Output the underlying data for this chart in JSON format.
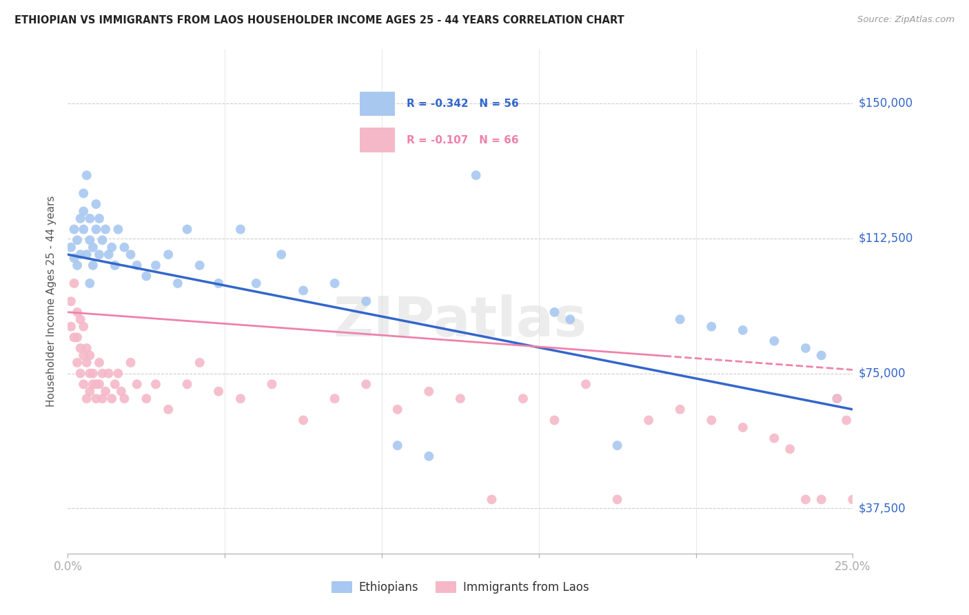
{
  "title": "ETHIOPIAN VS IMMIGRANTS FROM LAOS HOUSEHOLDER INCOME AGES 25 - 44 YEARS CORRELATION CHART",
  "source": "Source: ZipAtlas.com",
  "ylabel": "Householder Income Ages 25 - 44 years",
  "xlim": [
    0.0,
    0.25
  ],
  "ylim": [
    25000,
    165000
  ],
  "xticks": [
    0.0,
    0.05,
    0.1,
    0.15,
    0.2,
    0.25
  ],
  "xticklabels": [
    "0.0%",
    "",
    "",
    "",
    "",
    "25.0%"
  ],
  "ytick_positions": [
    37500,
    75000,
    112500,
    150000
  ],
  "ytick_labels": [
    "$37,500",
    "$75,000",
    "$112,500",
    "$150,000"
  ],
  "blue_color": "#A8C8F0",
  "pink_color": "#F5B8C8",
  "blue_line_color": "#3366CC",
  "pink_line_color": "#EE82AA",
  "legend_R1": "R = -0.342",
  "legend_N1": "N = 56",
  "legend_R2": "R = -0.107",
  "legend_N2": "N = 66",
  "watermark": "ZIPatlas",
  "title_color": "#222222",
  "axis_label_color": "#3366CC",
  "blue_scatter_x": [
    0.001,
    0.002,
    0.002,
    0.003,
    0.003,
    0.004,
    0.004,
    0.005,
    0.005,
    0.005,
    0.006,
    0.006,
    0.007,
    0.007,
    0.007,
    0.008,
    0.008,
    0.009,
    0.009,
    0.01,
    0.01,
    0.011,
    0.012,
    0.013,
    0.014,
    0.015,
    0.016,
    0.018,
    0.02,
    0.022,
    0.025,
    0.028,
    0.032,
    0.035,
    0.038,
    0.042,
    0.048,
    0.055,
    0.06,
    0.068,
    0.075,
    0.085,
    0.095,
    0.105,
    0.115,
    0.13,
    0.155,
    0.16,
    0.175,
    0.195,
    0.205,
    0.215,
    0.225,
    0.235,
    0.24,
    0.245
  ],
  "blue_scatter_y": [
    110000,
    107000,
    115000,
    105000,
    112000,
    108000,
    118000,
    115000,
    120000,
    125000,
    108000,
    130000,
    100000,
    112000,
    118000,
    110000,
    105000,
    115000,
    122000,
    108000,
    118000,
    112000,
    115000,
    108000,
    110000,
    105000,
    115000,
    110000,
    108000,
    105000,
    102000,
    105000,
    108000,
    100000,
    115000,
    105000,
    100000,
    115000,
    100000,
    108000,
    98000,
    100000,
    95000,
    55000,
    52000,
    130000,
    92000,
    90000,
    55000,
    90000,
    88000,
    87000,
    84000,
    82000,
    80000,
    68000
  ],
  "pink_scatter_x": [
    0.001,
    0.001,
    0.002,
    0.002,
    0.003,
    0.003,
    0.003,
    0.004,
    0.004,
    0.004,
    0.005,
    0.005,
    0.005,
    0.006,
    0.006,
    0.006,
    0.007,
    0.007,
    0.007,
    0.008,
    0.008,
    0.009,
    0.009,
    0.01,
    0.01,
    0.011,
    0.011,
    0.012,
    0.013,
    0.014,
    0.015,
    0.016,
    0.017,
    0.018,
    0.02,
    0.022,
    0.025,
    0.028,
    0.032,
    0.038,
    0.042,
    0.048,
    0.055,
    0.065,
    0.075,
    0.085,
    0.095,
    0.105,
    0.115,
    0.125,
    0.135,
    0.145,
    0.155,
    0.165,
    0.175,
    0.185,
    0.195,
    0.205,
    0.215,
    0.225,
    0.23,
    0.235,
    0.24,
    0.245,
    0.248,
    0.25
  ],
  "pink_scatter_y": [
    95000,
    88000,
    100000,
    85000,
    92000,
    85000,
    78000,
    90000,
    82000,
    75000,
    80000,
    88000,
    72000,
    78000,
    82000,
    68000,
    75000,
    80000,
    70000,
    75000,
    72000,
    72000,
    68000,
    78000,
    72000,
    75000,
    68000,
    70000,
    75000,
    68000,
    72000,
    75000,
    70000,
    68000,
    78000,
    72000,
    68000,
    72000,
    65000,
    72000,
    78000,
    70000,
    68000,
    72000,
    62000,
    68000,
    72000,
    65000,
    70000,
    68000,
    40000,
    68000,
    62000,
    72000,
    40000,
    62000,
    65000,
    62000,
    60000,
    57000,
    54000,
    40000,
    40000,
    68000,
    62000,
    40000
  ]
}
